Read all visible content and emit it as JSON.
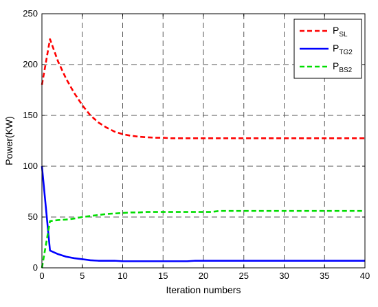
{
  "chart_data": {
    "type": "line",
    "xlabel": "Iteration numbers",
    "ylabel": "Power(KW)",
    "xlim": [
      0,
      40
    ],
    "ylim": [
      0,
      250
    ],
    "xticks": [
      "0",
      "5",
      "10",
      "15",
      "20",
      "25",
      "30",
      "35",
      "40"
    ],
    "yticks": [
      "0",
      "50",
      "100",
      "150",
      "200",
      "250"
    ],
    "grid": true,
    "legend_position": "top-right",
    "series": [
      {
        "name": "P",
        "name_sub": "SL",
        "color": "#ff0000",
        "dash": "dashed",
        "x": [
          0,
          1,
          2,
          3,
          4,
          5,
          6,
          7,
          8,
          9,
          10,
          11,
          12,
          13,
          14,
          15,
          16,
          20,
          25,
          30,
          35,
          40
        ],
        "y": [
          180,
          225,
          203,
          186,
          172,
          160,
          150,
          143,
          138,
          134,
          131.5,
          130,
          129,
          128.5,
          128,
          128,
          127.5,
          127.5,
          127.5,
          127.5,
          127.5,
          127.5
        ]
      },
      {
        "name": "P",
        "name_sub": "TG2",
        "color": "#0000ff",
        "dash": "solid",
        "x": [
          0,
          1,
          2,
          3,
          4,
          5,
          6,
          7,
          8,
          9,
          10,
          11,
          12,
          13,
          14,
          15,
          16,
          17,
          18,
          19,
          20,
          25,
          30,
          35,
          40
        ],
        "y": [
          100,
          17,
          13.5,
          11,
          9.5,
          8.5,
          7.5,
          7,
          7,
          7,
          6.5,
          6.5,
          6.5,
          6.5,
          6.5,
          6.5,
          6.5,
          6.5,
          6.5,
          7,
          7,
          7,
          7,
          7,
          7
        ]
      },
      {
        "name": "P",
        "name_sub": "BS2",
        "color": "#00dd00",
        "dash": "dashed",
        "x": [
          0,
          1,
          2,
          3,
          4,
          5,
          6,
          7,
          8,
          9,
          10,
          11,
          12,
          13,
          14,
          15,
          16,
          17,
          18,
          19,
          20,
          21,
          22,
          25,
          30,
          35,
          40
        ],
        "y": [
          0,
          46,
          47,
          47.5,
          48.5,
          50,
          51,
          52,
          53,
          53.5,
          54,
          54.5,
          54.5,
          55,
          55,
          55,
          55,
          55,
          55,
          55,
          55,
          55,
          56,
          56,
          56,
          56,
          56
        ]
      }
    ]
  }
}
